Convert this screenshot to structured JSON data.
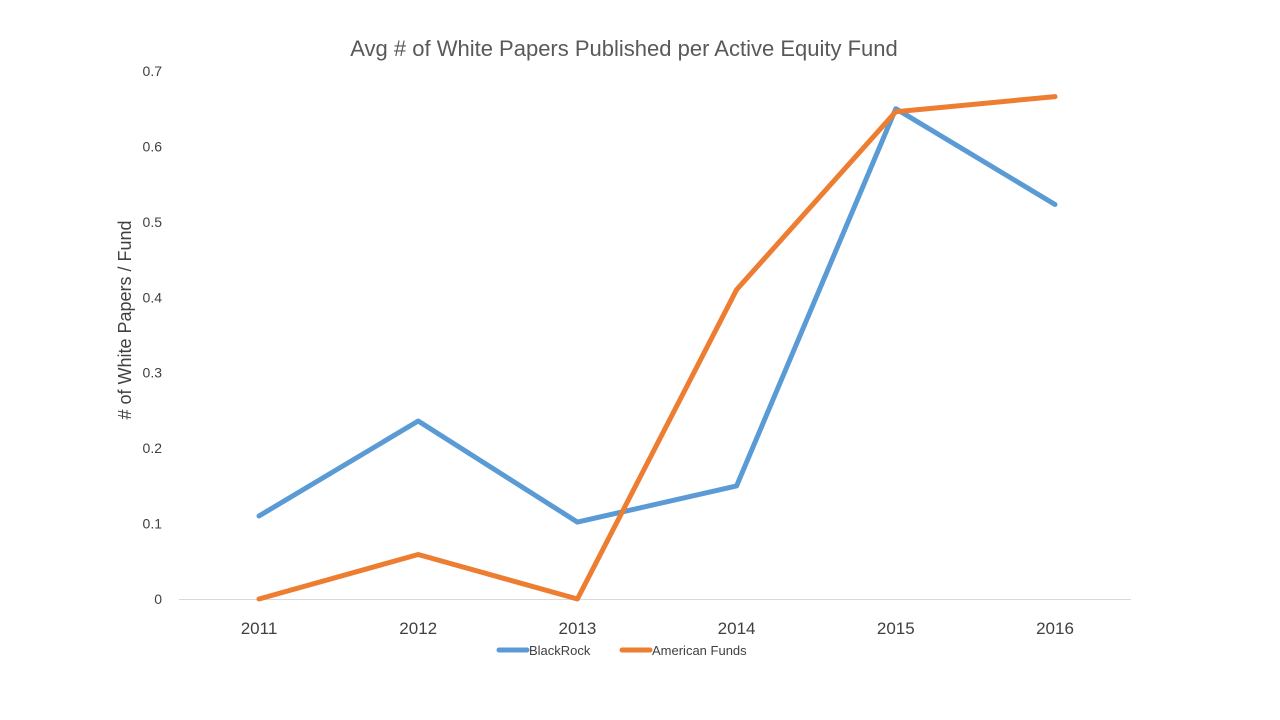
{
  "chart_data": {
    "type": "line",
    "title": "Avg # of White Papers Published per Active Equity Fund",
    "xlabel": "",
    "ylabel": "# of White Papers / Fund",
    "categories": [
      "2011",
      "2012",
      "2013",
      "2014",
      "2015",
      "2016"
    ],
    "ylim": [
      0,
      0.7
    ],
    "y_ticks": [
      "0",
      "0.1",
      "0.2",
      "0.3",
      "0.4",
      "0.5",
      "0.6",
      "0.7"
    ],
    "grid": false,
    "legend_position": "bottom",
    "series": [
      {
        "name": "BlackRock",
        "color": "#5B9BD5",
        "values": [
          0.11,
          0.236,
          0.102,
          0.15,
          0.65,
          0.523
        ]
      },
      {
        "name": "American Funds",
        "color": "#ED7D31",
        "values": [
          0.0,
          0.059,
          0.0,
          0.41,
          0.646,
          0.666
        ]
      }
    ]
  },
  "colors": {
    "axis_line": "#D9D9D9",
    "background": "#FFFFFF"
  }
}
